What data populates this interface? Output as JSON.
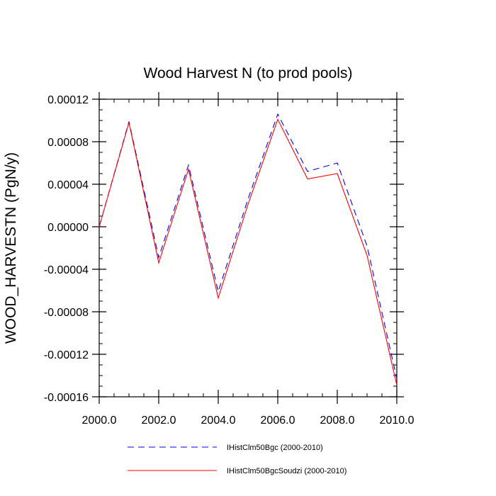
{
  "chart_data": {
    "type": "line",
    "title": "Wood Harvest N (to prod pools)",
    "xlabel": "",
    "ylabel": "WOOD_HARVESTN  (PgN/y)",
    "xlim": [
      2000,
      2010
    ],
    "ylim": [
      -0.00016,
      0.00012
    ],
    "x_ticks": [
      2000,
      2002,
      2004,
      2006,
      2008,
      2010
    ],
    "x_tick_labels": [
      "2000.0",
      "2002.0",
      "2004.0",
      "2006.0",
      "2008.0",
      "2010.0"
    ],
    "y_ticks": [
      0.00012,
      8e-05,
      4e-05,
      0.0,
      -4e-05,
      -8e-05,
      -0.00012,
      -0.00016
    ],
    "y_tick_labels": [
      "0.00012",
      "0.00008",
      "0.00004",
      "0.00000",
      "-0.00004",
      "-0.00008",
      "-0.00012",
      "-0.00016"
    ],
    "grid": false,
    "legend_position": "bottom",
    "x": [
      2000,
      2001,
      2002,
      2003,
      2004,
      2005,
      2006,
      2007,
      2008,
      2009,
      2010
    ],
    "series": [
      {
        "name": "IHistClm50Bgc (2000-2010)",
        "color": "#0000ff",
        "dash": "dashed",
        "values": [
          0.0,
          9.9e-05,
          -2.9e-05,
          5.8e-05,
          -6.1e-05,
          2.6e-05,
          0.000106,
          5.2e-05,
          6e-05,
          -1.8e-05,
          -0.000143
        ]
      },
      {
        "name": "IHistClm50BgcSoudzi (2000-2010)",
        "color": "#ff0000",
        "dash": "solid",
        "values": [
          0.0,
          9.8e-05,
          -3.4e-05,
          5.4e-05,
          -6.7e-05,
          2.1e-05,
          0.000101,
          4.5e-05,
          5e-05,
          -2.7e-05,
          -0.000149
        ]
      }
    ]
  }
}
